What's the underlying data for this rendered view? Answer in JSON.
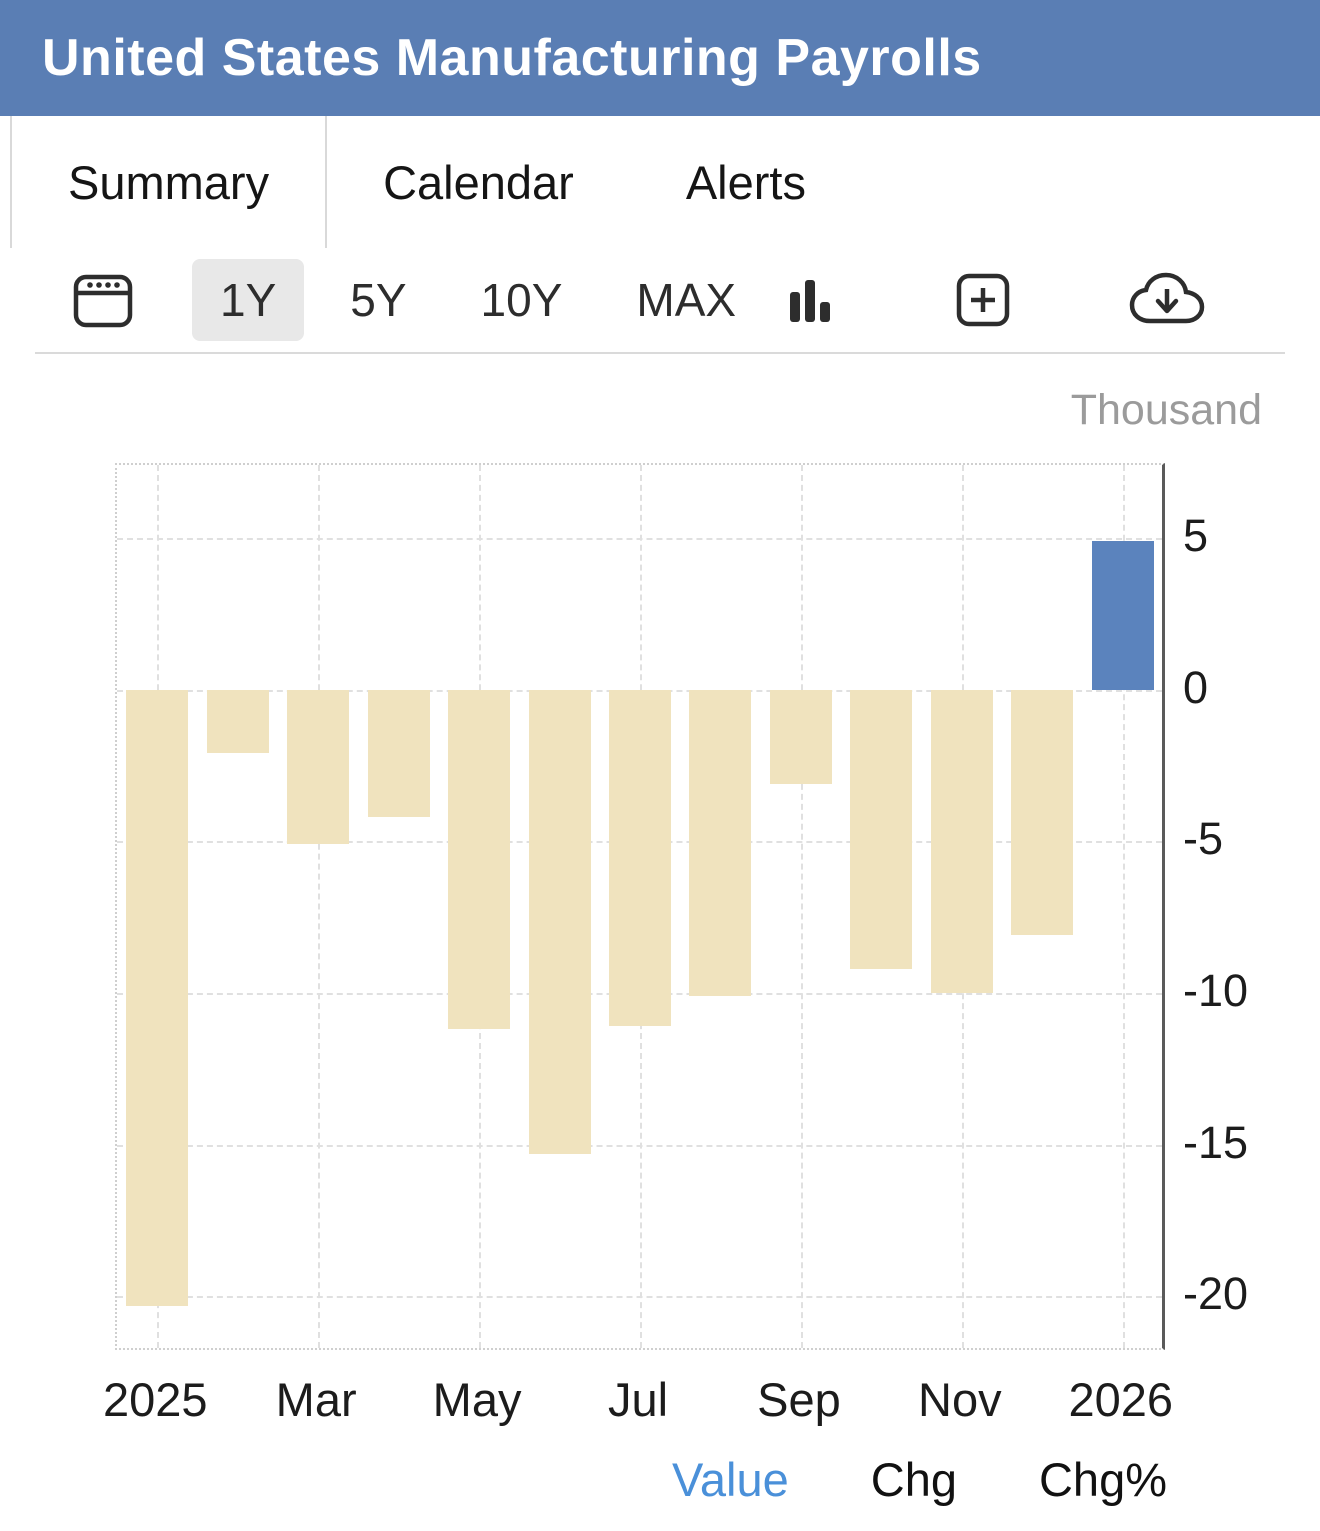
{
  "header": {
    "title": "United States Manufacturing Payrolls",
    "bg_color": "#5a7eb4"
  },
  "tabs": [
    {
      "label": "Summary",
      "active": true
    },
    {
      "label": "Calendar",
      "active": false
    },
    {
      "label": "Alerts",
      "active": false
    }
  ],
  "toolbar": {
    "ranges": [
      {
        "label": "1Y",
        "active": true
      },
      {
        "label": "5Y",
        "active": false
      },
      {
        "label": "10Y",
        "active": false
      },
      {
        "label": "MAX",
        "active": false
      }
    ],
    "icons": [
      "calendar-icon",
      "bar-chart-icon",
      "expand-plus-icon",
      "cloud-download-icon",
      "kebab-menu-icon"
    ]
  },
  "chart_data": {
    "type": "bar",
    "title": "United States Manufacturing Payrolls",
    "unit_label": "Thousand",
    "categories": [
      "Jan 2025",
      "Feb 2025",
      "Mar 2025",
      "Apr 2025",
      "May 2025",
      "Jun 2025",
      "Jul 2025",
      "Aug 2025",
      "Sep 2025",
      "Oct 2025",
      "Nov 2025",
      "Dec 2025",
      "Jan 2026"
    ],
    "values": [
      -20.3,
      -2.1,
      -5.1,
      -4.2,
      -11.2,
      -15.3,
      -11.1,
      -10.1,
      -3.1,
      -9.2,
      -10.0,
      -8.1,
      4.9
    ],
    "x_tick_labels": [
      "2025",
      "Mar",
      "May",
      "Jul",
      "Sep",
      "Nov",
      "2026"
    ],
    "x_tick_indices": [
      0,
      2,
      4,
      6,
      8,
      10,
      12
    ],
    "y_ticks": [
      5,
      0,
      -5,
      -10,
      -15,
      -20
    ],
    "ylim": [
      -21.7,
      7.4
    ],
    "bar_color_negative": "#f0e3be",
    "bar_color_positive": "#5b83bd",
    "grid": true,
    "legend_position": "none"
  },
  "footer": {
    "options": [
      {
        "label": "Value",
        "active": true
      },
      {
        "label": "Chg",
        "active": false
      },
      {
        "label": "Chg%",
        "active": false
      }
    ],
    "active_color": "#4a90d9",
    "inactive_color": "#111111"
  }
}
